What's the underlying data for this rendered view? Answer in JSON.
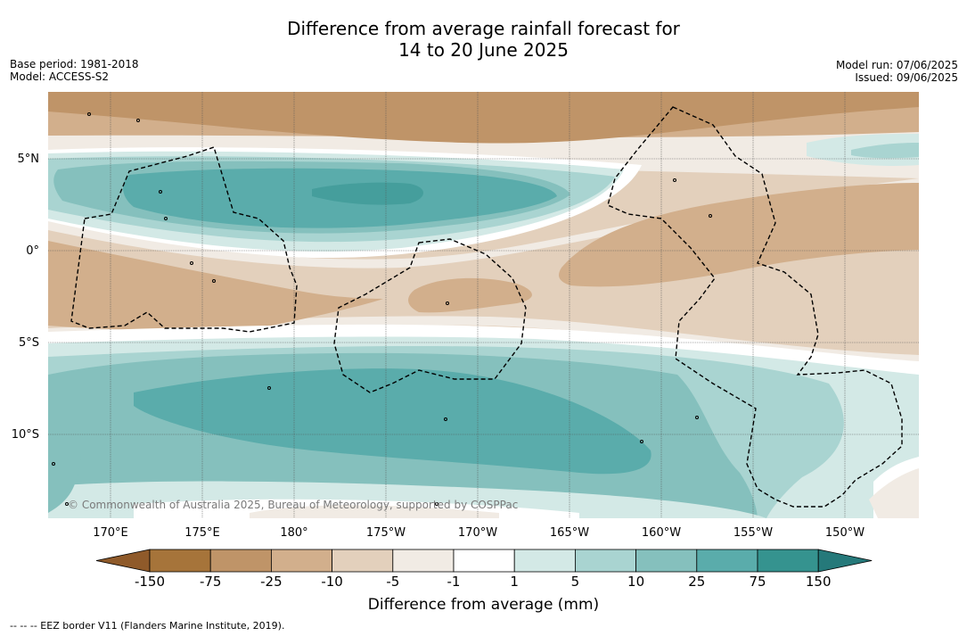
{
  "title": {
    "line1": "Difference from average rainfall forecast for",
    "line2": "14 to 20 June 2025"
  },
  "meta": {
    "base_period": "Base period: 1981-2018",
    "model": "Model: ACCESS-S2",
    "model_run": "Model run: 07/06/2025",
    "issued": "Issued: 09/06/2025"
  },
  "map": {
    "lat_labels": [
      "5°N",
      "0°",
      "5°S",
      "10°S"
    ],
    "lon_labels": [
      "170°E",
      "175°E",
      "180°",
      "175°W",
      "170°W",
      "165°W",
      "160°W",
      "155°W",
      "150°W"
    ],
    "copyright": "© Commonwealth of Australia 2025, Bureau of Meteorology, supported by COSPPac"
  },
  "colorbar": {
    "labels": [
      "-150",
      "-75",
      "-25",
      "-10",
      "-5",
      "-1",
      "1",
      "5",
      "10",
      "25",
      "75",
      "150"
    ],
    "colors": [
      "#a6743a",
      "#bf9468",
      "#d2af8c",
      "#e3d0bc",
      "#f1ebe4",
      "#ffffff",
      "#d3e9e6",
      "#a9d4d1",
      "#85c0bd",
      "#5aacab",
      "#35938f"
    ],
    "under_color": "#8f5a2a",
    "over_color": "#25797a",
    "title": "Difference from average (mm)"
  },
  "footnote": "-- -- -- EEZ border V11 (Flanders Marine Institute, 2019)."
}
